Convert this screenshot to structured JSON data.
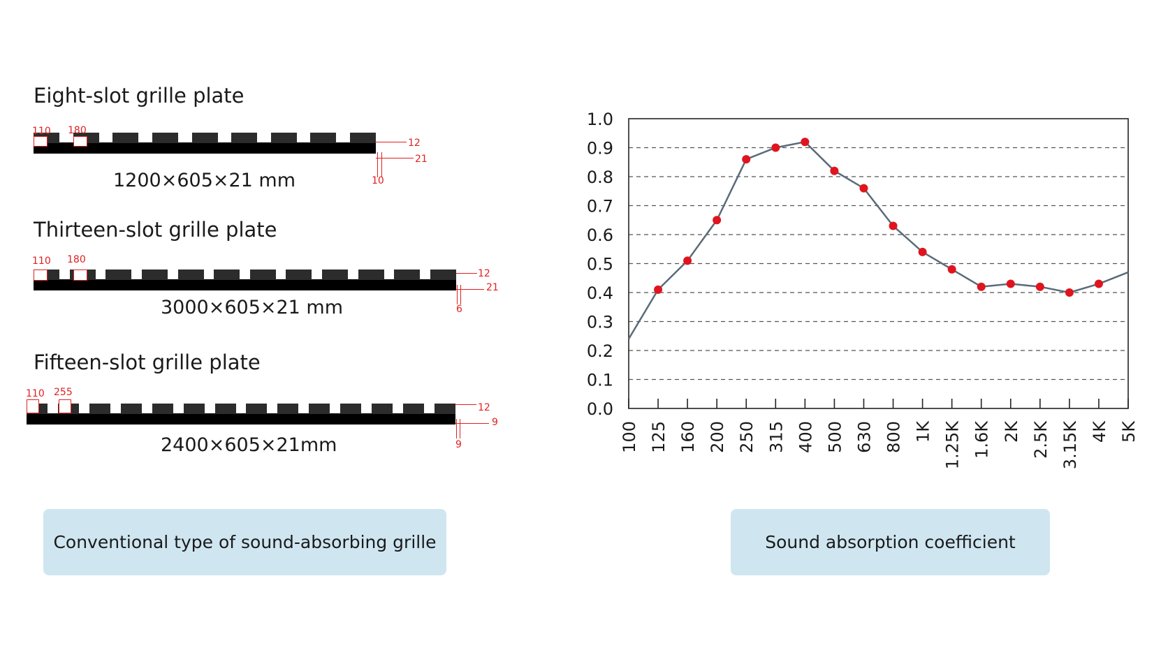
{
  "plates": [
    {
      "title": "Eight-slot grille plate",
      "dimensions": "1200×605×21 mm",
      "slot_labels": [
        "110",
        "180"
      ],
      "right_labels": [
        "12",
        "21"
      ],
      "bottom_label": "10"
    },
    {
      "title": "Thirteen-slot grille plate",
      "dimensions": "3000×605×21 mm",
      "slot_labels": [
        "110",
        "180"
      ],
      "right_labels": [
        "12",
        "21"
      ],
      "bottom_label": "6"
    },
    {
      "title": "Fifteen-slot grille plate",
      "dimensions": "2400×605×21mm",
      "slot_labels": [
        "110",
        "255"
      ],
      "right_labels": [
        "12",
        "9"
      ],
      "bottom_label": "9"
    }
  ],
  "captions": {
    "left": "Conventional type of sound-absorbing grille",
    "right": "Sound absorption coefficient"
  },
  "colors": {
    "line": "#5a6a7a",
    "marker": "#e0141e",
    "caption_bg": "#cfe6f1",
    "dimension_red": "#e02020"
  },
  "chart_data": {
    "type": "line",
    "title": "",
    "xlabel": "",
    "ylabel": "",
    "categories": [
      "100",
      "125",
      "160",
      "200",
      "250",
      "315",
      "400",
      "500",
      "630",
      "800",
      "1K",
      "1.25K",
      "1.6K",
      "2K",
      "2.5K",
      "3.15K",
      "4K",
      "5K"
    ],
    "series": [
      {
        "values": [
          0.24,
          0.41,
          0.51,
          0.65,
          0.86,
          0.9,
          0.92,
          0.82,
          0.76,
          0.63,
          0.54,
          0.48,
          0.42,
          0.43,
          0.42,
          0.4,
          0.43,
          0.47
        ]
      }
    ],
    "markers_on": [
      "125",
      "160",
      "200",
      "250",
      "315",
      "400",
      "500",
      "630",
      "800",
      "1K",
      "1.25K",
      "1.6K",
      "2K",
      "2.5K",
      "3.15K",
      "4K"
    ],
    "yticks": [
      "0.0",
      "0.1",
      "0.2",
      "0.3",
      "0.4",
      "0.5",
      "0.6",
      "0.7",
      "0.8",
      "0.9",
      "1.0"
    ],
    "ylim": [
      0,
      1.0
    ],
    "grid": "horizontal dashed"
  }
}
